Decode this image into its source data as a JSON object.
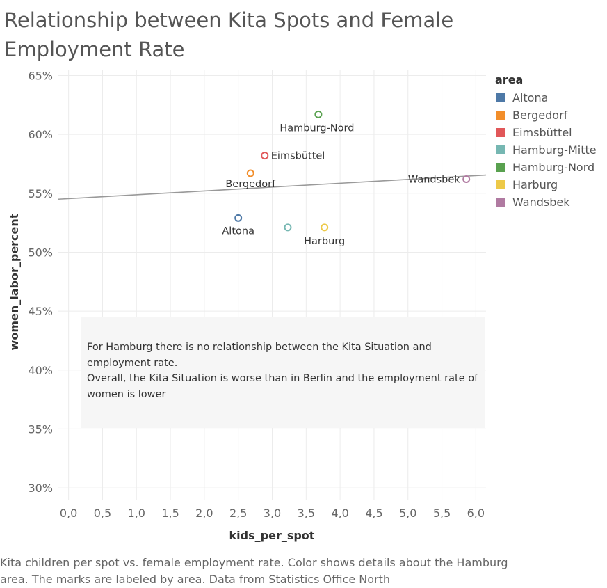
{
  "title": "Relationship between Kita Spots and Female Employment Rate",
  "legend": {
    "title": "area",
    "position": "right",
    "items": [
      {
        "label": "Altona",
        "color": "#4e79a7"
      },
      {
        "label": "Bergedorf",
        "color": "#f28e2b"
      },
      {
        "label": "Eimsbüttel",
        "color": "#e15759"
      },
      {
        "label": "Hamburg-Mitte",
        "color": "#76b7b2"
      },
      {
        "label": "Hamburg-Nord",
        "color": "#59a14f"
      },
      {
        "label": "Harburg",
        "color": "#edc948"
      },
      {
        "label": "Wandsbek",
        "color": "#b07aa1"
      }
    ]
  },
  "annotation": {
    "line1": "For Hamburg there is no relationship between the Kita Situation and employment rate.",
    "line2": "Overall, the Kita Situation is worse than in Berlin and the employment rate of women is lower"
  },
  "caption": "Kita children per spot vs. female employment rate.  Color shows details about the Hamburg area.  The marks are labeled by area. Data from Statistics Office North",
  "chart_data": {
    "type": "scatter",
    "title": "Relationship between Kita Spots and Female Employment Rate",
    "xlabel": "kids_per_spot",
    "ylabel": "women_labor_percent",
    "xlim": [
      -0.15,
      6.15
    ],
    "ylim": [
      0.29,
      0.655
    ],
    "x_ticks": [
      {
        "value": 0.0,
        "label": "0,0"
      },
      {
        "value": 0.5,
        "label": "0,5"
      },
      {
        "value": 1.0,
        "label": "1,0"
      },
      {
        "value": 1.5,
        "label": "1,5"
      },
      {
        "value": 2.0,
        "label": "2,0"
      },
      {
        "value": 2.5,
        "label": "2,5"
      },
      {
        "value": 3.0,
        "label": "3,0"
      },
      {
        "value": 3.5,
        "label": "3,5"
      },
      {
        "value": 4.0,
        "label": "4,0"
      },
      {
        "value": 4.5,
        "label": "4,5"
      },
      {
        "value": 5.0,
        "label": "5,0"
      },
      {
        "value": 5.5,
        "label": "5,5"
      },
      {
        "value": 6.0,
        "label": "6,0"
      }
    ],
    "y_ticks": [
      {
        "value": 0.3,
        "label": "30%"
      },
      {
        "value": 0.35,
        "label": "35%"
      },
      {
        "value": 0.4,
        "label": "40%"
      },
      {
        "value": 0.45,
        "label": "45%"
      },
      {
        "value": 0.5,
        "label": "50%"
      },
      {
        "value": 0.55,
        "label": "55%"
      },
      {
        "value": 0.6,
        "label": "60%"
      },
      {
        "value": 0.65,
        "label": "65%"
      }
    ],
    "grid": true,
    "points": [
      {
        "area": "Altona",
        "x": 2.5,
        "y": 0.529,
        "label": "Altona",
        "color": "#4e79a7"
      },
      {
        "area": "Bergedorf",
        "x": 2.68,
        "y": 0.567,
        "label": "Bergedorf",
        "color": "#f28e2b"
      },
      {
        "area": "Eimsbüttel",
        "x": 2.89,
        "y": 0.582,
        "label": "Eimsbüttel",
        "color": "#e15759"
      },
      {
        "area": "Hamburg-Mitte",
        "x": 3.23,
        "y": 0.521,
        "label": "",
        "color": "#76b7b2"
      },
      {
        "area": "Hamburg-Nord",
        "x": 3.68,
        "y": 0.617,
        "label": "Hamburg-Nord",
        "color": "#59a14f"
      },
      {
        "area": "Harburg",
        "x": 3.77,
        "y": 0.521,
        "label": "Harburg",
        "color": "#edc948"
      },
      {
        "area": "Wandsbek",
        "x": 5.86,
        "y": 0.562,
        "label": "Wandsbek",
        "color": "#b07aa1"
      }
    ],
    "trend_line": {
      "x": [
        -0.15,
        6.15
      ],
      "y": [
        0.545,
        0.5655
      ],
      "color": "#999999"
    }
  }
}
